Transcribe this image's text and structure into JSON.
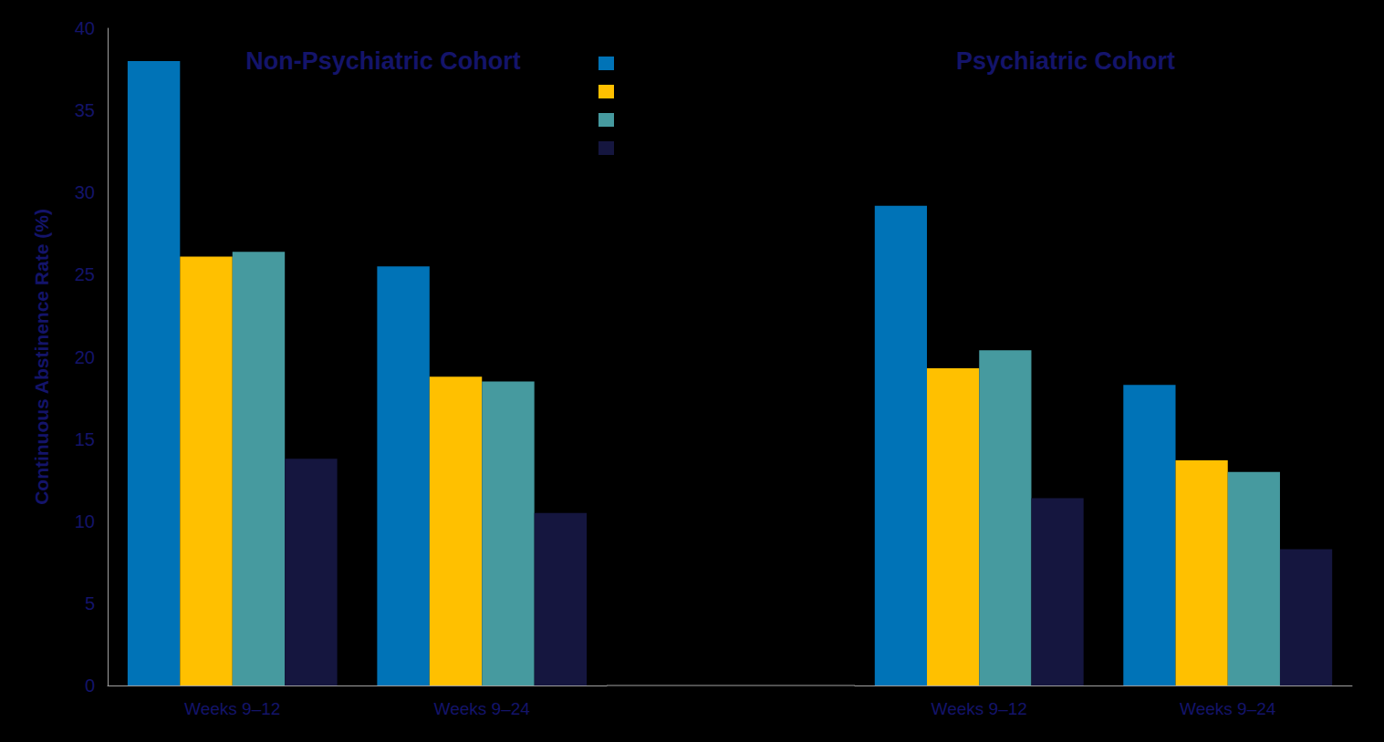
{
  "chart_data": [
    {
      "type": "bar",
      "title": "Non-Psychiatric Cohort",
      "y_label": "Continuous Abstinence Rate (%)",
      "categories": [
        "Weeks 9–12",
        "Weeks 9–24"
      ],
      "series": [
        {
          "color": "#0073b7",
          "values": [
            38.0,
            25.5
          ]
        },
        {
          "color": "#ffc000",
          "values": [
            26.1,
            18.8
          ]
        },
        {
          "color": "#469a9f",
          "values": [
            26.4,
            18.5
          ]
        },
        {
          "color": "#15163f",
          "values": [
            13.8,
            10.5
          ]
        }
      ],
      "ylim": [
        0,
        40
      ],
      "yticks": [
        0,
        5,
        10,
        15,
        20,
        25,
        30,
        35,
        40
      ],
      "grid": false
    },
    {
      "type": "bar",
      "title": "Psychiatric Cohort",
      "categories": [
        "Weeks 9–12",
        "Weeks 9–24"
      ],
      "series": [
        {
          "color": "#0073b7",
          "values": [
            29.2,
            18.3
          ]
        },
        {
          "color": "#ffc000",
          "values": [
            19.3,
            13.7
          ]
        },
        {
          "color": "#469a9f",
          "values": [
            20.4,
            13.0
          ]
        },
        {
          "color": "#15163f",
          "values": [
            11.4,
            8.3
          ]
        }
      ],
      "ylim": [
        0,
        40
      ],
      "yticks": [
        0,
        5,
        10,
        15,
        20,
        25,
        30,
        35,
        40
      ],
      "grid": false,
      "tick_labels": "x"
    }
  ]
}
